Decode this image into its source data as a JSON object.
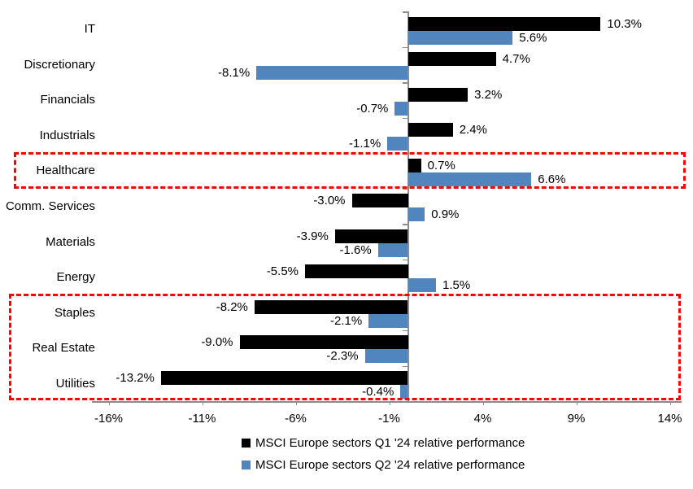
{
  "chart_data": {
    "type": "bar",
    "orientation": "horizontal",
    "categories": [
      "IT",
      "Discretionary",
      "Financials",
      "Industrials",
      "Healthcare",
      "Comm. Services",
      "Materials",
      "Energy",
      "Staples",
      "Real Estate",
      "Utilities"
    ],
    "series": [
      {
        "name": "MSCI Europe sectors Q1 '24 relative performance",
        "color": "#000000",
        "values": [
          10.3,
          4.7,
          3.2,
          2.4,
          0.7,
          -3.0,
          -3.9,
          -5.5,
          -8.2,
          -9.0,
          -13.2
        ]
      },
      {
        "name": "MSCI Europe sectors Q2 '24 relative performance",
        "color": "#5185be",
        "values": [
          5.6,
          -8.1,
          -0.7,
          -1.1,
          6.6,
          0.9,
          -1.6,
          1.5,
          -2.1,
          -2.3,
          -0.4
        ]
      }
    ],
    "value_label_suffix": "%",
    "x_ticks": [
      "-16%",
      "-11%",
      "-6%",
      "-1%",
      "4%",
      "9%",
      "14%"
    ],
    "x_tick_values": [
      -16,
      -11,
      -6,
      -1,
      4,
      9,
      14
    ],
    "xlim": [
      -16.9,
      14.6
    ],
    "grid": false,
    "legend_position": "bottom",
    "highlight_boxes": [
      {
        "rows": [
          "Healthcare"
        ],
        "color": "#fe0000",
        "style": "dashed"
      },
      {
        "rows": [
          "Staples",
          "Real Estate",
          "Utilities"
        ],
        "color": "#fe0000",
        "style": "dashed"
      }
    ]
  }
}
